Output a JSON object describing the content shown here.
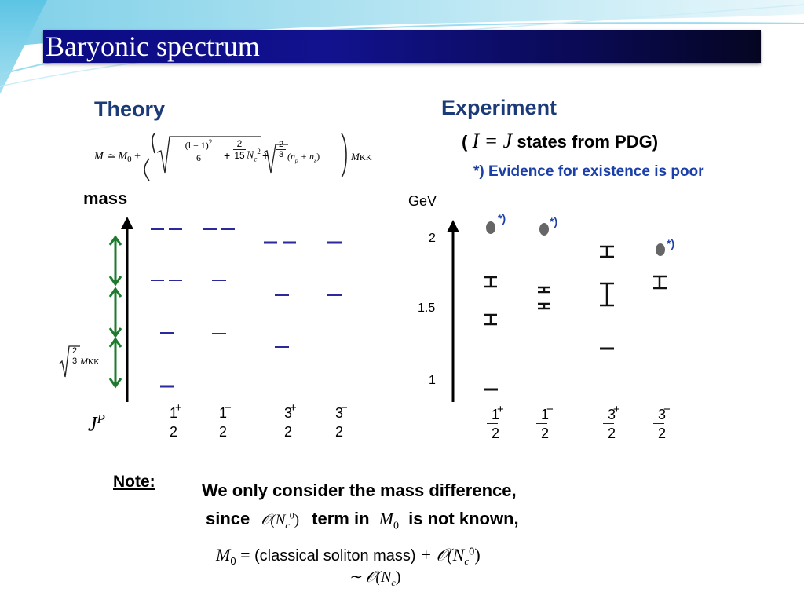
{
  "slide": {
    "title": "Baryonic spectrum"
  },
  "theory": {
    "heading": "Theory",
    "formula": {
      "lhs": "M ≃ M",
      "sub0": "0",
      "plus": "+",
      "frac1_num": "(l + 1)",
      "frac1_sup": "2",
      "frac1_den": "6",
      "frac2_num": "2",
      "frac2_den": "15",
      "nc": "N",
      "nc_sub": "c",
      "nc_sup": "2",
      "frac3_num": "2",
      "frac3_den": "3",
      "np_term": "(n",
      "rho": "ρ",
      "nz_term": " + n",
      "z": "z",
      "close": ")",
      "mkk": "M",
      "kk": "KK"
    },
    "mass_label": "mass",
    "spacing_label": {
      "num": "2",
      "den": "3",
      "m": "M",
      "kk": "KK"
    },
    "jp_label": "J",
    "jp_sup": "P",
    "columns": [
      {
        "num": "1",
        "den": "2",
        "sign": "+"
      },
      {
        "num": "1",
        "den": "2",
        "sign": "−"
      },
      {
        "num": "3",
        "den": "2",
        "sign": "+"
      },
      {
        "num": "3",
        "den": "2",
        "sign": "−"
      }
    ]
  },
  "experiment": {
    "heading": "Experiment",
    "subtitle_open": "(",
    "subtitle_math": "I = J",
    "subtitle_rest": " states from PDG)",
    "poor_note": "*) Evidence for existence is poor",
    "unit": "GeV",
    "ticks": [
      "2",
      "1.5",
      "1"
    ],
    "star": "*)",
    "columns": [
      {
        "num": "1",
        "den": "2",
        "sign": "+"
      },
      {
        "num": "1",
        "den": "2",
        "sign": "−"
      },
      {
        "num": "3",
        "den": "2",
        "sign": "+"
      },
      {
        "num": "3",
        "den": "2",
        "sign": "−"
      }
    ]
  },
  "note": {
    "label": "Note:",
    "line1": "We only consider the mass difference,",
    "line2_a": "since",
    "line2_math": "𝒪(N",
    "line2_sub": "c",
    "line2_sup": "0",
    "line2_close": ")",
    "line2_b": "term in",
    "line2_m": "M",
    "line2_m_sub": "0",
    "line2_c": "is not known,",
    "eq_m": "M",
    "eq_sub": "0",
    "eq_eq": " = ",
    "eq_text": "(classical soliton mass)",
    "eq_plus": " + 𝒪(N",
    "eq_nc_sub": "c",
    "eq_nc_sup": "0",
    "eq_close": ")",
    "approx": "∼ 𝒪(N",
    "approx_sub": "c",
    "approx_close": ")"
  },
  "colors": {
    "title_bar": "#0b0b85",
    "heading": "#1a3a78",
    "theory_levels": "#2a2a9a",
    "arrows": "#1e7a2e",
    "poor_note": "#1a3fa8"
  }
}
